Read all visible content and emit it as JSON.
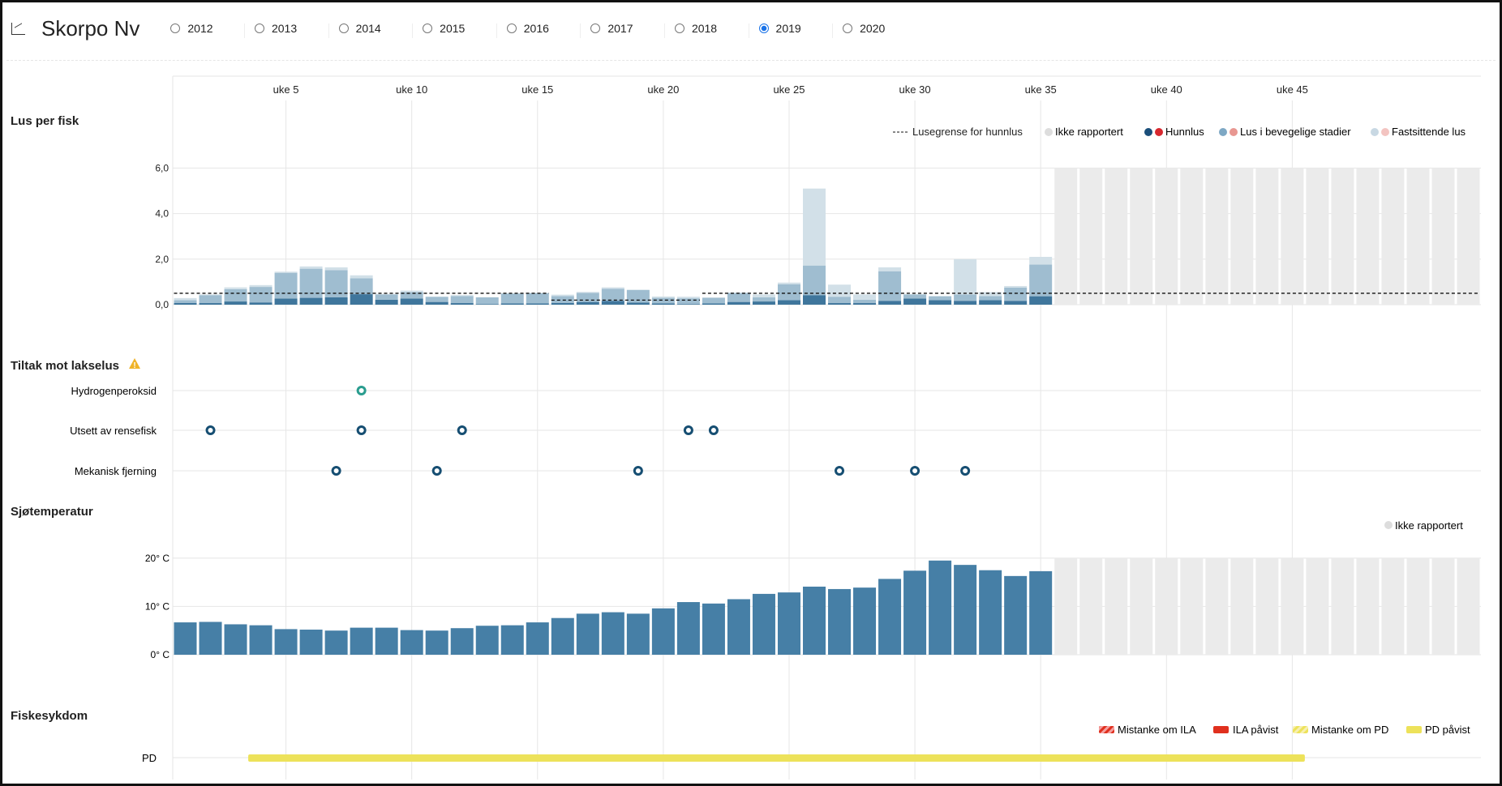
{
  "header": {
    "title": "Skorpo Nv",
    "icon": "line-chart-icon",
    "years": [
      {
        "label": "2012",
        "selected": false
      },
      {
        "label": "2013",
        "selected": false
      },
      {
        "label": "2014",
        "selected": false
      },
      {
        "label": "2015",
        "selected": false
      },
      {
        "label": "2016",
        "selected": false
      },
      {
        "label": "2017",
        "selected": false
      },
      {
        "label": "2018",
        "selected": false
      },
      {
        "label": "2019",
        "selected": true
      },
      {
        "label": "2020",
        "selected": false
      }
    ]
  },
  "week_axis": {
    "labels": [
      "uke 5",
      "uke 10",
      "uke 15",
      "uke 20",
      "uke 25",
      "uke 30",
      "uke 35",
      "uke 40",
      "uke 45"
    ],
    "weeks": [
      5,
      10,
      15,
      20,
      25,
      30,
      35,
      40,
      45
    ]
  },
  "sections": {
    "lice": "Lus per fisk",
    "tiltak": "Tiltak mot lakselus",
    "temp": "Sjøtemperatur",
    "disease": "Fiskesykdom"
  },
  "legends": {
    "lice": [
      "Lusegrense for hunnlus",
      "Ikke rapportert",
      "Hunnlus",
      "Lus i bevegelige stadier",
      "Fastsittende lus"
    ],
    "temp": [
      "Ikke rapportert"
    ],
    "disease": [
      "Mistanke om ILA",
      "ILA påvist",
      "Mistanke om PD",
      "PD påvist"
    ]
  },
  "colors": {
    "hunnlus": "#3f769c",
    "bevegelige": "#9fbdd0",
    "fastsittende": "#d2e0e8",
    "not_reported": "#ebebeb",
    "temp": "#467fa6",
    "dot": "#164e72",
    "dot_teal": "#2a9d8f",
    "pd": "#ede25a",
    "ila": "#e0301e",
    "warning": "#f0b429"
  },
  "chart_data": [
    {
      "type": "bar",
      "title": "Lus per fisk",
      "xlabel": "uke",
      "ylabel": "Lus per fisk",
      "ylim": [
        0,
        6
      ],
      "yticks": [
        "0,0",
        "2,0",
        "4,0",
        "6,0"
      ],
      "weeks_total": 52,
      "reported_weeks": 35,
      "weeks": [
        1,
        2,
        3,
        4,
        5,
        6,
        7,
        8,
        9,
        10,
        11,
        12,
        13,
        14,
        15,
        16,
        17,
        18,
        19,
        20,
        21,
        22,
        23,
        24,
        25,
        26,
        27,
        28,
        29,
        30,
        31,
        32,
        33,
        34,
        35
      ],
      "series": [
        {
          "name": "Hunnlus",
          "values": [
            0.08,
            0.07,
            0.14,
            0.1,
            0.27,
            0.3,
            0.32,
            0.46,
            0.22,
            0.27,
            0.12,
            0.07,
            0.03,
            0.06,
            0.06,
            0.08,
            0.12,
            0.17,
            0.09,
            0.06,
            0.03,
            0.06,
            0.12,
            0.14,
            0.2,
            0.42,
            0.07,
            0.07,
            0.17,
            0.27,
            0.2,
            0.17,
            0.2,
            0.17,
            0.37
          ]
        },
        {
          "name": "Lus i bevegelige stadier",
          "values": [
            0.12,
            0.35,
            0.54,
            0.68,
            1.13,
            1.28,
            1.2,
            0.7,
            0.23,
            0.28,
            0.22,
            0.31,
            0.29,
            0.42,
            0.44,
            0.3,
            0.4,
            0.53,
            0.55,
            0.24,
            0.25,
            0.24,
            0.38,
            0.18,
            0.7,
            1.3,
            0.28,
            0.15,
            1.3,
            0.18,
            0.17,
            0.28,
            0.18,
            0.58,
            1.39
          ]
        },
        {
          "name": "Fastsittende lus",
          "values": [
            0.09,
            0.03,
            0.08,
            0.08,
            0.05,
            0.1,
            0.12,
            0.13,
            0.02,
            0.07,
            0.02,
            0.04,
            0.01,
            0.02,
            0.02,
            0.06,
            0.04,
            0.06,
            0.02,
            0.06,
            0.07,
            0.02,
            0.04,
            0.13,
            0.07,
            3.38,
            0.53,
            0.23,
            0.17,
            0.01,
            0.01,
            1.55,
            0.17,
            0.07,
            0.34
          ]
        }
      ],
      "threshold": {
        "name": "Lusegrense for hunnlus",
        "segments": [
          {
            "from": 1,
            "to": 15,
            "value": 0.5
          },
          {
            "from": 16,
            "to": 21,
            "value": 0.2
          },
          {
            "from": 22,
            "to": 52,
            "value": 0.5
          }
        ]
      }
    },
    {
      "type": "scatter",
      "title": "Tiltak mot lakselus",
      "rows": [
        {
          "name": "Hydrogenperoksid",
          "weeks": [
            8
          ],
          "color": "teal"
        },
        {
          "name": "Utsett av rensefisk",
          "weeks": [
            2,
            8,
            12,
            21,
            22
          ],
          "color": "dark"
        },
        {
          "name": "Mekanisk fjerning",
          "weeks": [
            7,
            11,
            19,
            27,
            30,
            32
          ],
          "color": "dark"
        }
      ]
    },
    {
      "type": "bar",
      "title": "Sjøtemperatur",
      "ylim": [
        0,
        20
      ],
      "yticks": [
        "0° C",
        "10° C",
        "20° C"
      ],
      "weeks": [
        1,
        2,
        3,
        4,
        5,
        6,
        7,
        8,
        9,
        10,
        11,
        12,
        13,
        14,
        15,
        16,
        17,
        18,
        19,
        20,
        21,
        22,
        23,
        24,
        25,
        26,
        27,
        28,
        29,
        30,
        31,
        32,
        33,
        34,
        35
      ],
      "values": [
        6.7,
        6.8,
        6.3,
        6.1,
        5.3,
        5.2,
        5.0,
        5.6,
        5.6,
        5.1,
        5.0,
        5.5,
        6.0,
        6.1,
        6.7,
        7.6,
        8.5,
        8.8,
        8.5,
        9.6,
        10.9,
        10.6,
        11.5,
        12.6,
        12.9,
        14.1,
        13.6,
        13.9,
        15.7,
        17.4,
        19.5,
        18.6,
        17.5,
        16.3,
        17.3
      ]
    },
    {
      "type": "gantt",
      "title": "Fiskesykdom",
      "rows": [
        {
          "name": "PD",
          "status": "PD påvist",
          "from_week": 4,
          "to_week": 45
        }
      ]
    }
  ]
}
